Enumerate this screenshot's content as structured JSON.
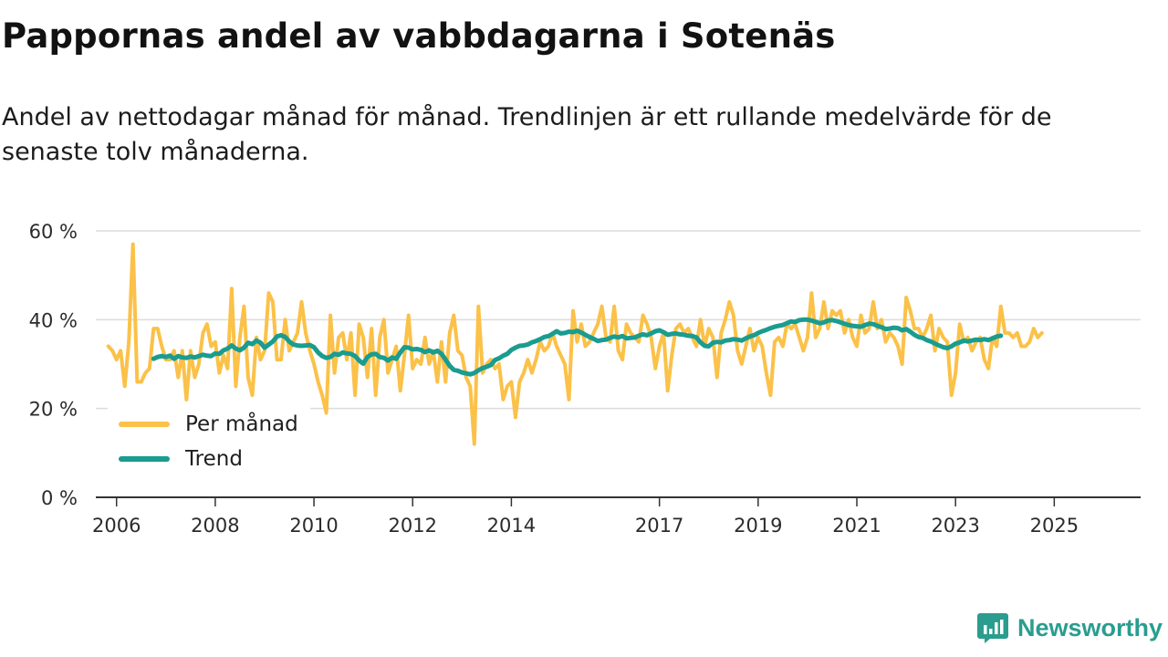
{
  "chart_data": {
    "type": "line",
    "title": "Pappornas andel av vabbdagarna i Sotenäs",
    "subtitle": "Andel av nettodagar månad för månad. Trendlinjen är ett rullande medelvärde för de senaste tolv månaderna.",
    "xlabel": "",
    "ylabel": "",
    "x_start": [
      2005,
      11
    ],
    "xlim": [
      2005.58,
      2026.75
    ],
    "ylim": [
      0,
      60
    ],
    "yticks": [
      0,
      20,
      40,
      60
    ],
    "ytick_labels": [
      "0 %",
      "20 %",
      "40 %",
      "60 %"
    ],
    "xticks": [
      2006,
      2008,
      2010,
      2012,
      2014,
      2017,
      2019,
      2021,
      2023,
      2025
    ],
    "xtick_labels": [
      "2006",
      "2008",
      "2010",
      "2012",
      "2014",
      "2017",
      "2019",
      "2021",
      "2023",
      "2025"
    ],
    "grid": true,
    "legend_position": "bottom-left",
    "series": [
      {
        "name": "Per månad",
        "color": "#fbc148",
        "start": [
          2005,
          11
        ],
        "values": [
          34,
          33,
          31,
          33,
          25,
          35,
          57,
          26,
          26,
          28,
          29,
          38,
          38,
          34,
          31,
          31,
          33,
          27,
          33,
          22,
          33,
          27,
          30,
          37,
          39,
          34,
          35,
          28,
          32,
          29,
          47,
          25,
          36,
          43,
          27,
          23,
          36,
          31,
          33,
          46,
          44,
          31,
          31,
          40,
          33,
          35,
          37,
          44,
          37,
          33,
          30,
          26,
          23,
          19,
          41,
          28,
          36,
          37,
          31,
          37,
          23,
          39,
          36,
          27,
          38,
          23,
          36,
          40,
          28,
          31,
          34,
          24,
          32,
          41,
          29,
          31,
          30,
          36,
          30,
          33,
          26,
          35,
          26,
          37,
          41,
          33,
          32,
          27,
          25,
          12,
          43,
          28,
          30,
          31,
          29,
          30,
          22,
          25,
          26,
          18,
          26,
          28,
          31,
          28,
          31,
          35,
          33,
          34,
          37,
          34,
          32,
          30,
          22,
          42,
          35,
          39,
          34,
          35,
          37,
          39,
          43,
          36,
          35,
          43,
          33,
          31,
          39,
          37,
          36,
          35,
          41,
          39,
          36,
          29,
          34,
          37,
          24,
          32,
          38,
          39,
          37,
          38,
          36,
          34,
          40,
          34,
          38,
          36,
          27,
          37,
          40,
          44,
          41,
          33,
          30,
          34,
          38,
          33,
          36,
          34,
          28,
          23,
          35,
          36,
          34,
          39,
          38,
          39,
          36,
          33,
          36,
          46,
          36,
          38,
          44,
          38,
          42,
          41,
          42,
          37,
          40,
          36,
          34,
          41,
          37,
          38,
          44,
          38,
          40,
          35,
          37,
          36,
          34,
          30,
          45,
          42,
          38,
          38,
          36,
          38,
          41,
          33,
          38,
          36,
          35,
          23,
          28,
          39,
          35,
          36,
          33,
          35,
          36,
          31,
          29,
          36,
          34,
          43,
          37,
          37,
          36,
          37,
          34,
          34,
          35,
          38,
          36,
          37
        ]
      },
      {
        "name": "Trend",
        "color": "#1a9c8f",
        "start": [
          2006,
          10
        ],
        "values": [
          31.2,
          31.6,
          31.8,
          31.6,
          31.9,
          31.2,
          31.8,
          31.5,
          31.4,
          31.7,
          31.5,
          31.8,
          32.1,
          31.9,
          31.8,
          32.4,
          32.3,
          33.1,
          33.5,
          34.2,
          33.5,
          33.1,
          33.7,
          34.8,
          34.5,
          35.3,
          34.8,
          33.7,
          34.4,
          35.1,
          36.2,
          36.5,
          36.1,
          35.1,
          34.4,
          34.2,
          34.1,
          34.2,
          34.3,
          33.8,
          32.6,
          31.8,
          31.4,
          31.6,
          32.3,
          32.1,
          32.6,
          32.4,
          32.3,
          31.8,
          30.8,
          30.1,
          31.6,
          32.2,
          32.3,
          31.6,
          31.4,
          30.8,
          31.5,
          31.2,
          32.6,
          33.8,
          33.7,
          33.3,
          33.4,
          33.2,
          32.7,
          33.1,
          32.6,
          33.0,
          32.3,
          31.0,
          29.6,
          28.7,
          28.5,
          28.1,
          27.9,
          27.7,
          28.0,
          28.6,
          29.1,
          29.4,
          29.8,
          30.9,
          31.3,
          31.9,
          32.3,
          33.2,
          33.7,
          34.1,
          34.2,
          34.4,
          34.9,
          35.2,
          35.6,
          36.1,
          36.3,
          36.8,
          37.4,
          36.9,
          37.0,
          37.3,
          37.2,
          37.5,
          37.1,
          36.6,
          36.1,
          35.7,
          35.2,
          35.4,
          35.5,
          35.9,
          36.2,
          36.0,
          36.3,
          35.8,
          35.9,
          36.0,
          36.4,
          36.7,
          36.5,
          36.9,
          37.4,
          37.6,
          37.2,
          36.6,
          36.8,
          36.9,
          36.7,
          36.6,
          36.4,
          36.3,
          36.0,
          34.9,
          34.1,
          34.0,
          34.8,
          35.0,
          34.9,
          35.3,
          35.4,
          35.6,
          35.5,
          35.3,
          35.8,
          36.2,
          36.5,
          37.0,
          37.4,
          37.7,
          38.1,
          38.4,
          38.6,
          38.8,
          39.2,
          39.6,
          39.5,
          39.9,
          40.0,
          40.0,
          39.8,
          39.5,
          39.2,
          39.4,
          39.8,
          39.9,
          39.7,
          39.4,
          39.1,
          38.8,
          38.6,
          38.5,
          38.4,
          38.8,
          39.1,
          39.0,
          38.6,
          38.3,
          37.9,
          38.0,
          38.2,
          38.1,
          37.6,
          37.9,
          37.3,
          36.6,
          36.1,
          35.9,
          35.4,
          35.1,
          34.6,
          34.2,
          33.8,
          33.6,
          34.0,
          34.6,
          34.9,
          35.3,
          35.1,
          35.3,
          35.5,
          35.4,
          35.6,
          35.4,
          35.8,
          36.2,
          36.4
        ]
      }
    ]
  },
  "legend": {
    "monthly_label": "Per månad",
    "trend_label": "Trend"
  },
  "branding": {
    "logo_label": "Newsworthy",
    "logo_color": "#2a9d8f"
  }
}
